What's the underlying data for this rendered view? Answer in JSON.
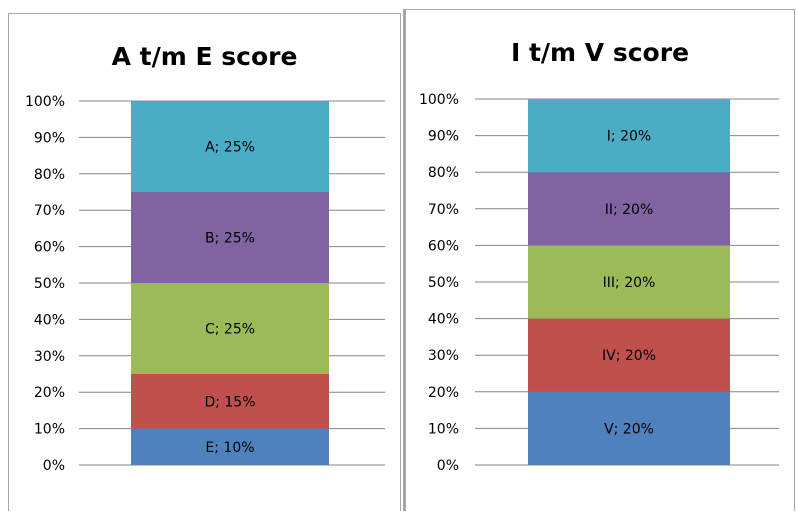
{
  "chart_data": [
    {
      "type": "bar",
      "stacked": true,
      "title": "A t/m E score",
      "ylim": [
        0,
        100
      ],
      "y_tick_labels": [
        "0%",
        "10%",
        "20%",
        "30%",
        "40%",
        "50%",
        "60%",
        "70%",
        "80%",
        "90%",
        "100%"
      ],
      "grid": true,
      "segments": [
        {
          "category": "E",
          "value": 10,
          "label": "E; 10%",
          "color": "#4f81bd"
        },
        {
          "category": "D",
          "value": 15,
          "label": "D; 15%",
          "color": "#c0504d"
        },
        {
          "category": "C",
          "value": 25,
          "label": "C; 25%",
          "color": "#9bbb59"
        },
        {
          "category": "B",
          "value": 25,
          "label": "B; 25%",
          "color": "#8064a2"
        },
        {
          "category": "A",
          "value": 25,
          "label": "A; 25%",
          "color": "#4bacc6"
        }
      ]
    },
    {
      "type": "bar",
      "stacked": true,
      "title": "I t/m V score",
      "ylim": [
        0,
        100
      ],
      "y_tick_labels": [
        "0%",
        "10%",
        "20%",
        "30%",
        "40%",
        "50%",
        "60%",
        "70%",
        "80%",
        "90%",
        "100%"
      ],
      "grid": true,
      "segments": [
        {
          "category": "V",
          "value": 20,
          "label": "V; 20%",
          "color": "#4f81bd"
        },
        {
          "category": "IV",
          "value": 20,
          "label": "IV; 20%",
          "color": "#c0504d"
        },
        {
          "category": "III",
          "value": 20,
          "label": "III; 20%",
          "color": "#9bbb59"
        },
        {
          "category": "II",
          "value": 20,
          "label": "II; 20%",
          "color": "#8064a2"
        },
        {
          "category": "I",
          "value": 20,
          "label": "I; 20%",
          "color": "#4bacc6"
        }
      ]
    }
  ]
}
